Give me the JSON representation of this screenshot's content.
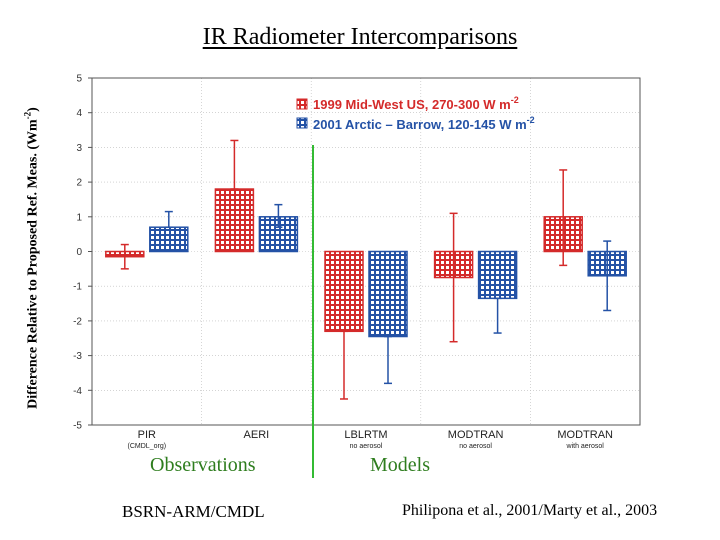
{
  "title": "IR Radiometer Intercomparisons",
  "ylabel": "Difference Relative to Proposed Ref. Meas. (Wm-2)",
  "observations_label": "Observations",
  "models_label": "Models",
  "footer_left": "BSRN-ARM/CMDL",
  "footer_right": "Philipona et al., 2001/Marty et al., 2003",
  "colors": {
    "series_1999": "#d42a2a",
    "series_2001": "#2452a6",
    "divider": "#33bb33"
  },
  "chart_data": {
    "type": "bar",
    "title": "IR Radiometer Intercomparisons",
    "ylabel": "Difference Relative to Proposed Ref. Meas. (Wm-2)",
    "ylim": [
      -5,
      5
    ],
    "yticks": [
      5,
      4,
      3,
      2,
      1,
      0,
      -1,
      -2,
      -3,
      -4,
      -5
    ],
    "categories": [
      "PIR",
      "AERI",
      "LBLRTM",
      "MODTRAN",
      "MODTRAN"
    ],
    "category_sublabels": [
      "(CMDL_org)",
      "",
      "no aerosol",
      "no aerosol",
      "with aerosol"
    ],
    "series": [
      {
        "name": "1999 Mid-West US, 270-300 W m-2",
        "legend_main": "1999  Mid-West US,    270-300 W m",
        "legend_sup": "-2",
        "values": [
          -0.15,
          1.8,
          -2.3,
          -0.75,
          1.0
        ],
        "err_high": [
          0.2,
          3.2,
          -2.3,
          1.1,
          2.35
        ],
        "err_low": [
          -0.5,
          1.8,
          -4.25,
          -2.6,
          -0.4
        ]
      },
      {
        "name": "2001 Arctic – Barrow, 120-145 W m-2",
        "legend_main": "2001  Arctic – Barrow,  120-145 W m",
        "legend_sup": "-2",
        "values": [
          0.7,
          1.0,
          -2.45,
          -1.35,
          -0.7
        ],
        "err_high": [
          1.15,
          1.35,
          -2.45,
          -1.35,
          0.3
        ],
        "err_low": [
          0.7,
          0.7,
          -3.8,
          -2.35,
          -1.7
        ]
      }
    ],
    "grid": true,
    "legend_position": "top-right"
  }
}
